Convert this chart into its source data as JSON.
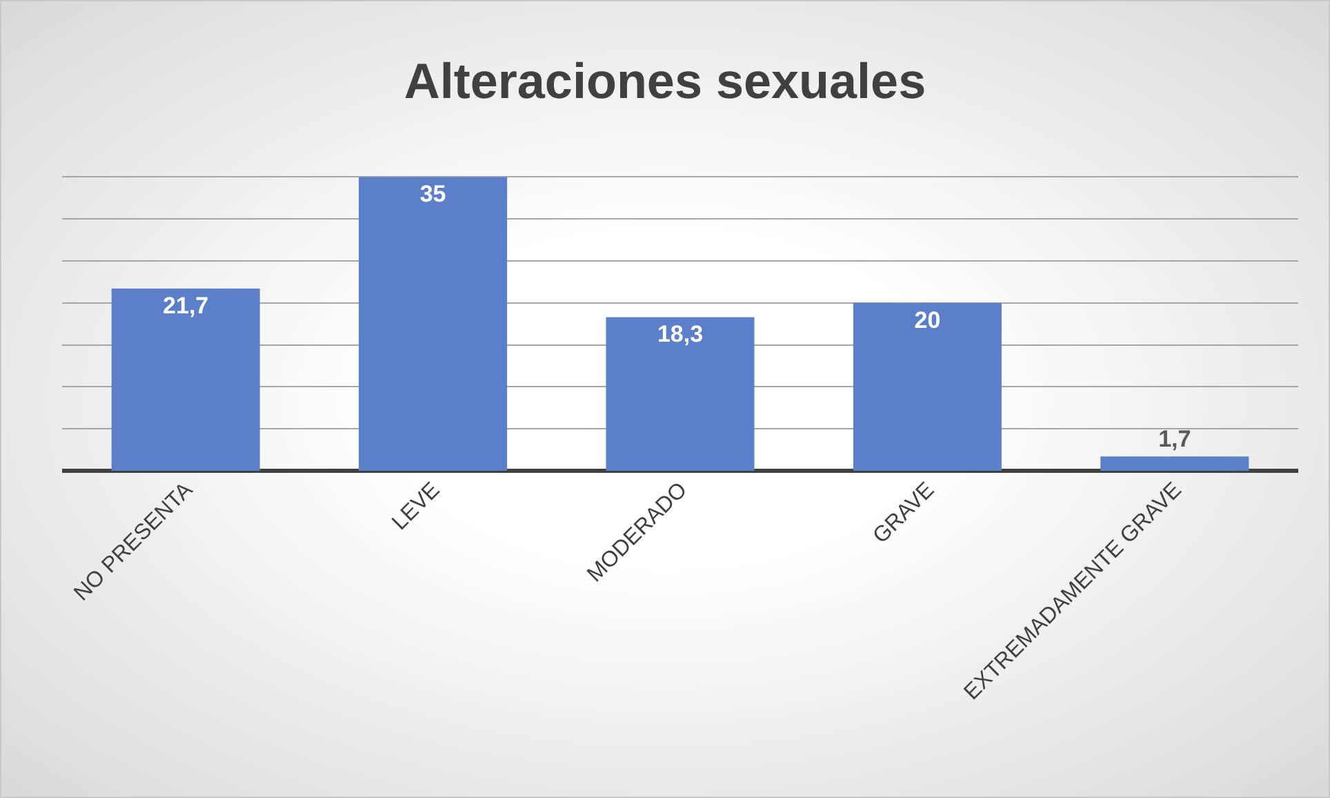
{
  "chart_data": {
    "type": "bar",
    "title": "Alteraciones sexuales",
    "categories": [
      "NO PRESENTA",
      "LEVE",
      "MODERADO",
      "GRAVE",
      "EXTREMADAMENTE GRAVE"
    ],
    "values": [
      21.7,
      35,
      18.3,
      20,
      1.7
    ],
    "value_labels": [
      "21,7",
      "35",
      "18,3",
      "20",
      "1,7"
    ],
    "color": "#5b80c9",
    "grid": "y",
    "tick_labels": "x"
  }
}
